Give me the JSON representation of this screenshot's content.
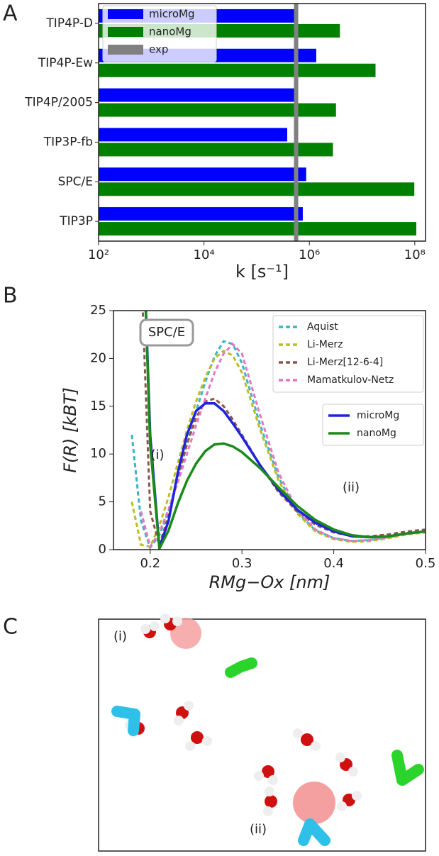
{
  "chart_data": [
    {
      "type": "bar",
      "orientation": "horizontal",
      "panel_label": "A",
      "categories": [
        "TIP4P-D",
        "TIP4P-Ew",
        "TIP4P/2005",
        "TIP3P-fb",
        "SPC/E",
        "TIP3P"
      ],
      "series": [
        {
          "name": "microMg",
          "color": "#0000ff",
          "values": [
            600000,
            1350000,
            600000,
            380000,
            870000,
            750000
          ]
        },
        {
          "name": "nanoMg",
          "color": "#008000",
          "values": [
            3800000,
            18000000,
            3200000,
            2800000,
            98000000,
            107000000
          ]
        }
      ],
      "reference": {
        "name": "exp",
        "color": "#808080",
        "value": 560000
      },
      "xlabel": "k [s⁻¹]",
      "xscale": "log",
      "xlim": [
        100,
        160000000
      ],
      "xticks": [
        {
          "value": 100,
          "label": "10²"
        },
        {
          "value": 10000,
          "label": "10⁴"
        },
        {
          "value": 1000000,
          "label": "10⁶"
        },
        {
          "value": 100000000,
          "label": "10⁸"
        }
      ],
      "legend": "upper left"
    },
    {
      "type": "line",
      "panel_label": "B",
      "x": [
        0.18,
        0.19,
        0.2,
        0.21,
        0.22,
        0.23,
        0.24,
        0.25,
        0.26,
        0.27,
        0.28,
        0.29,
        0.3,
        0.32,
        0.34,
        0.36,
        0.38,
        0.4,
        0.42,
        0.44,
        0.46,
        0.48,
        0.5
      ],
      "series": [
        {
          "name": "Aquist",
          "color": "#3ab5c6",
          "dashed": true,
          "values": [
            12,
            3,
            0.2,
            1.5,
            4,
            7.5,
            11,
            14.5,
            17.5,
            20.2,
            21.8,
            21.5,
            19.5,
            13,
            7.5,
            4,
            2,
            1.2,
            0.9,
            1,
            1.3,
            1.7,
            1.9
          ]
        },
        {
          "name": "Li-Merz",
          "color": "#bcbd22",
          "dashed": true,
          "values": [
            5,
            0.5,
            0.3,
            2.5,
            5.5,
            9,
            12.5,
            15.5,
            18,
            20,
            20.8,
            20.3,
            18.5,
            12.5,
            7.2,
            3.8,
            1.9,
            1.1,
            0.8,
            0.9,
            1.2,
            1.6,
            1.8
          ]
        },
        {
          "name": "Li-Merz[12-6-4]",
          "color": "#8c564b",
          "dashed": true,
          "values": [
            null,
            30,
            4,
            0.5,
            3.5,
            7.5,
            11,
            13.8,
            15.5,
            15.8,
            15,
            13.6,
            12,
            8.8,
            6,
            4,
            2.6,
            1.8,
            1.4,
            1.4,
            1.6,
            1.9,
            2.1
          ]
        },
        {
          "name": "Mamatkulov-Netz",
          "color": "#e377c2",
          "dashed": true,
          "values": [
            null,
            4,
            0.3,
            1.8,
            4.2,
            7,
            10,
            13,
            15.8,
            18.5,
            20.5,
            21.5,
            20.5,
            14,
            8,
            4.2,
            2.1,
            1.2,
            0.9,
            1,
            1.3,
            1.7,
            1.9
          ]
        },
        {
          "name": "microMg",
          "color": "#2222dd",
          "dashed": false,
          "values": [
            null,
            40,
            12,
            0.2,
            3,
            8,
            12,
            14.5,
            15.3,
            15.3,
            14.5,
            13.2,
            11.8,
            8.8,
            6.2,
            4.2,
            2.8,
            1.9,
            1.4,
            1.3,
            1.4,
            1.7,
            1.9
          ]
        },
        {
          "name": "nanoMg",
          "color": "#1a8a1a",
          "dashed": false,
          "values": [
            null,
            40,
            11,
            0.1,
            2,
            4.8,
            7.2,
            9,
            10.3,
            11,
            11.1,
            10.8,
            10.2,
            8.5,
            6.5,
            4.6,
            3.1,
            2.1,
            1.5,
            1.3,
            1.4,
            1.7,
            1.9
          ]
        }
      ],
      "xlabel": "RMg−Ox [nm]",
      "ylabel": "F(R) [kBT]",
      "xlim": [
        0.16,
        0.5
      ],
      "xticks": [
        0.2,
        0.3,
        0.4,
        0.5
      ],
      "ylim": [
        0,
        25
      ],
      "yticks": [
        0,
        5,
        10,
        15,
        20,
        25
      ],
      "annotations": [
        "SPC/E",
        "(i)",
        "(ii)"
      ]
    }
  ],
  "panel_c": {
    "panel_label": "C",
    "labels": [
      "(i)",
      "(ii)"
    ]
  }
}
